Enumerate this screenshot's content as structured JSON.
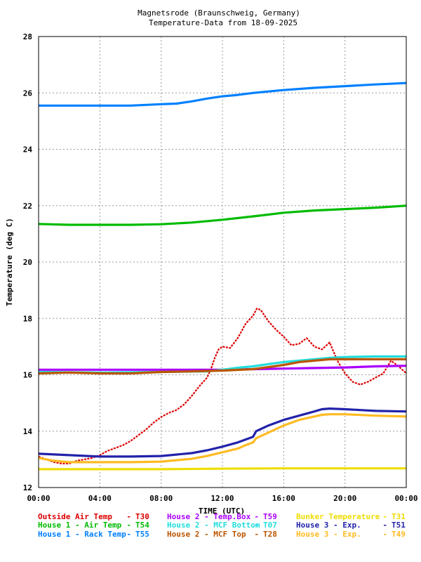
{
  "chart_data": {
    "type": "line",
    "title": "Magnetsrode (Braunschweig, Germany)",
    "subtitle": "Temperature-Data from 18-09-2025",
    "xlabel": "TIME (UTC)",
    "ylabel": "Temperature (deg C)",
    "xlim": [
      0,
      24
    ],
    "ylim": [
      12,
      28
    ],
    "xticks": [
      {
        "value": 0,
        "label": "00:00"
      },
      {
        "value": 4,
        "label": "04:00"
      },
      {
        "value": 8,
        "label": "08:00"
      },
      {
        "value": 12,
        "label": "12:00"
      },
      {
        "value": 16,
        "label": "16:00"
      },
      {
        "value": 20,
        "label": "20:00"
      },
      {
        "value": 24,
        "label": "00:00"
      }
    ],
    "yticks": [
      12,
      14,
      16,
      18,
      20,
      22,
      24,
      26,
      28
    ],
    "grid": true,
    "legend_position": "bottom",
    "series": [
      {
        "name": "Outside Air Temp",
        "id": "T30",
        "color": "#dd0000",
        "x": [
          0,
          0.5,
          1,
          1.5,
          2,
          2.5,
          3,
          3.5,
          4,
          4.5,
          5,
          5.5,
          6,
          6.5,
          7,
          7.5,
          8,
          8.5,
          9,
          9.5,
          10,
          10.5,
          11,
          11.25,
          11.5,
          11.75,
          12,
          12.5,
          13,
          13.5,
          14,
          14.25,
          14.5,
          15,
          15.5,
          16,
          16.5,
          17,
          17.5,
          18,
          18.5,
          19,
          19.5,
          20,
          20.5,
          21,
          21.5,
          22,
          22.5,
          23,
          23.5,
          24
        ],
        "y": [
          13.1,
          13.0,
          12.9,
          12.85,
          12.85,
          12.95,
          13.0,
          13.05,
          13.15,
          13.3,
          13.4,
          13.5,
          13.65,
          13.85,
          14.05,
          14.3,
          14.5,
          14.65,
          14.75,
          14.95,
          15.25,
          15.6,
          15.9,
          16.2,
          16.6,
          16.9,
          17.0,
          16.95,
          17.3,
          17.8,
          18.1,
          18.35,
          18.3,
          17.9,
          17.6,
          17.35,
          17.05,
          17.1,
          17.3,
          17.0,
          16.9,
          17.15,
          16.5,
          16.05,
          15.75,
          15.65,
          15.75,
          15.9,
          16.05,
          16.5,
          16.3,
          16.05
        ]
      },
      {
        "name": "House 1 - Air  Temp",
        "id": "T54",
        "color": "#00bb00",
        "x": [
          0,
          2,
          4,
          6,
          8,
          10,
          12,
          14,
          16,
          18,
          20,
          22,
          24
        ],
        "y": [
          21.35,
          21.32,
          21.32,
          21.32,
          21.34,
          21.4,
          21.5,
          21.62,
          21.75,
          21.83,
          21.88,
          21.93,
          22.0
        ]
      },
      {
        "name": "House 1 - Rack Temp",
        "id": "T55",
        "color": "#0080ff",
        "x": [
          0,
          2,
          4,
          6,
          8,
          9,
          10,
          11,
          12,
          13,
          14,
          15,
          16,
          18,
          20,
          22,
          24
        ],
        "y": [
          25.55,
          25.55,
          25.55,
          25.55,
          25.6,
          25.62,
          25.7,
          25.8,
          25.88,
          25.93,
          26.0,
          26.05,
          26.1,
          26.18,
          26.24,
          26.3,
          26.35
        ]
      },
      {
        "name": "House 2 - Temp.Box",
        "id": "T59",
        "color": "#aa00ff",
        "x": [
          0,
          4,
          8,
          12,
          14,
          16,
          18,
          20,
          22,
          24
        ],
        "y": [
          16.18,
          16.18,
          16.18,
          16.18,
          16.2,
          16.22,
          16.24,
          16.26,
          16.3,
          16.32
        ]
      },
      {
        "name": "House 2 - MCF Bottom",
        "id": "T07",
        "color": "#22dddd",
        "x": [
          0,
          4,
          8,
          11,
          12,
          13,
          14,
          15,
          16,
          17,
          18,
          19,
          20,
          22,
          24
        ],
        "y": [
          16.1,
          16.08,
          16.1,
          16.12,
          16.18,
          16.25,
          16.3,
          16.38,
          16.45,
          16.5,
          16.55,
          16.6,
          16.63,
          16.65,
          16.65
        ]
      },
      {
        "name": "House 2 - MCF Top",
        "id": "T28",
        "color": "#bb5500",
        "x": [
          0,
          2,
          4,
          6,
          8,
          10,
          12,
          14,
          16,
          17,
          18,
          19,
          20,
          22,
          24
        ],
        "y": [
          16.05,
          16.08,
          16.05,
          16.05,
          16.1,
          16.12,
          16.15,
          16.2,
          16.35,
          16.45,
          16.5,
          16.55,
          16.55,
          16.55,
          16.55
        ]
      },
      {
        "name": "Bunker Temperature",
        "id": "T31",
        "color": "#eedd00",
        "x": [
          0,
          4,
          8,
          12,
          16,
          20,
          24
        ],
        "y": [
          12.65,
          12.65,
          12.65,
          12.67,
          12.68,
          12.68,
          12.68
        ]
      },
      {
        "name": "House 3 - Exp.",
        "id": "T51",
        "color": "#2222aa",
        "x": [
          0,
          2,
          4,
          6,
          8,
          10,
          11,
          12,
          13,
          13.5,
          14,
          14.2,
          15,
          16,
          17,
          18,
          18.5,
          19,
          20,
          21,
          22,
          24
        ],
        "y": [
          13.2,
          13.15,
          13.1,
          13.1,
          13.12,
          13.22,
          13.32,
          13.45,
          13.6,
          13.7,
          13.8,
          14.0,
          14.2,
          14.4,
          14.55,
          14.7,
          14.78,
          14.8,
          14.78,
          14.75,
          14.72,
          14.7
        ]
      },
      {
        "name": "House 3 - Exp.",
        "id": "T49",
        "color": "#ffbb22",
        "x": [
          0,
          1,
          2,
          4,
          6,
          8,
          10,
          11,
          12,
          13,
          13.5,
          14,
          14.2,
          15,
          16,
          17,
          18,
          18.5,
          19,
          20,
          22,
          24
        ],
        "y": [
          13.05,
          12.95,
          12.9,
          12.9,
          12.9,
          12.92,
          13.02,
          13.12,
          13.25,
          13.38,
          13.5,
          13.6,
          13.75,
          13.95,
          14.2,
          14.4,
          14.52,
          14.58,
          14.6,
          14.6,
          14.55,
          14.52
        ]
      }
    ]
  }
}
